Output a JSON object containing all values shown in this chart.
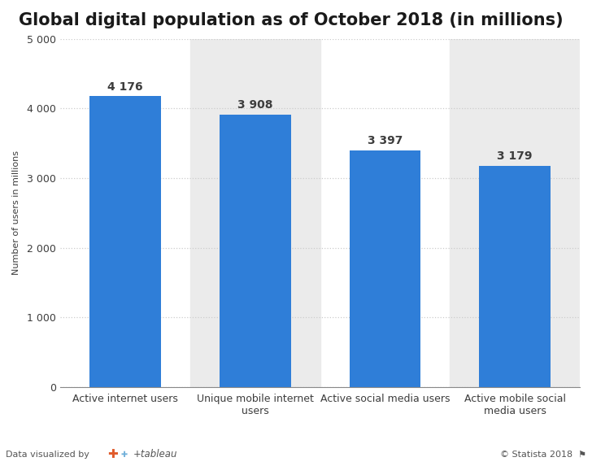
{
  "title": "Global digital population as of October 2018 (in millions)",
  "categories": [
    "Active internet users",
    "Unique mobile internet\nusers",
    "Active social media users",
    "Active mobile social\nmedia users"
  ],
  "values": [
    4176,
    3908,
    3397,
    3179
  ],
  "labels": [
    "4 176",
    "3 908",
    "3 397",
    "3 179"
  ],
  "bar_color": "#2f7ed8",
  "background_color": "#ffffff",
  "ylabel": "Number of users in millions",
  "ylim": [
    0,
    5000
  ],
  "yticks": [
    0,
    1000,
    2000,
    3000,
    4000,
    5000
  ],
  "ytick_labels": [
    "0",
    "1 000",
    "2 000",
    "3 000",
    "4 000",
    "5 000"
  ],
  "title_fontsize": 15,
  "label_fontsize": 10,
  "tick_fontsize": 9,
  "ylabel_fontsize": 8,
  "footer_left": "Data visualized by",
  "footer_right": "© Statista 2018",
  "grid_color": "#cccccc",
  "stripe_color": "#ebebeb",
  "text_color": "#3d3d3d"
}
